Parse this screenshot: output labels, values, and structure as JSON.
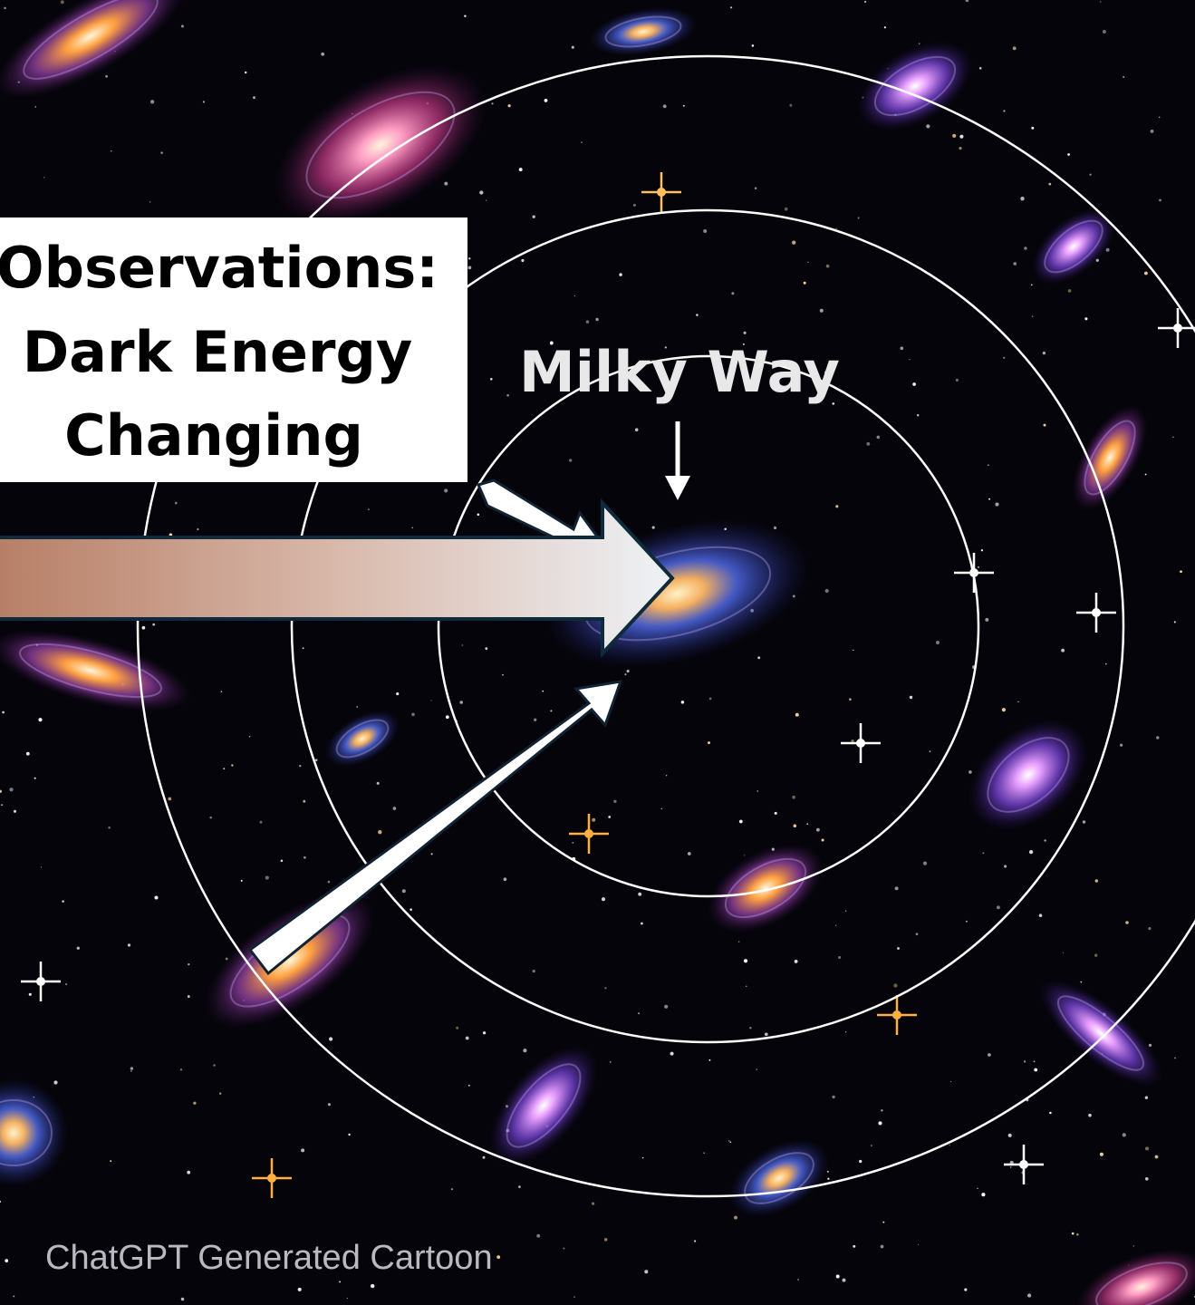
{
  "label_box": {
    "lines": [
      "Observations:",
      "Dark Energy",
      "Changing"
    ]
  },
  "milky_way_label": "Milky Way",
  "credit": "ChatGPT Generated Cartoon"
}
